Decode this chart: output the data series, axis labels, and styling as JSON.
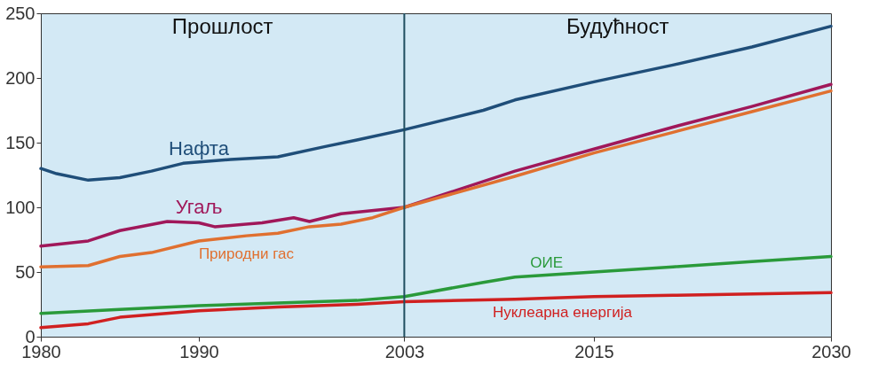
{
  "chart_data": {
    "type": "line",
    "xlim": [
      1980,
      2030
    ],
    "xticks": [
      1980,
      1990,
      2003,
      2015,
      2030
    ],
    "ylim": [
      0,
      250
    ],
    "yticks": [
      0,
      50,
      100,
      150,
      200,
      250
    ],
    "grid": false,
    "marker": "none",
    "line_style": "solid",
    "series": [
      {
        "name": "Нафта",
        "color": "#1f4e79",
        "x": [
          1980,
          1981,
          1983,
          1985,
          1987,
          1989,
          1992,
          1995,
          1998,
          2000,
          2003,
          2008,
          2010,
          2015,
          2020,
          2025,
          2030
        ],
        "values": [
          130,
          126,
          121,
          123,
          128,
          134,
          137,
          139,
          147,
          152,
          160,
          175,
          183,
          197,
          210,
          224,
          240
        ]
      },
      {
        "name": "Угаљ",
        "color": "#a0185a",
        "x": [
          1980,
          1983,
          1985,
          1988,
          1990,
          1991,
          1994,
          1996,
          1997,
          1999,
          2003,
          2010,
          2015,
          2020,
          2025,
          2030
        ],
        "values": [
          70,
          74,
          82,
          89,
          88,
          85,
          88,
          92,
          89,
          95,
          100,
          128,
          145,
          162,
          178,
          195
        ]
      },
      {
        "name": "Природни гас",
        "color": "#e07030",
        "x": [
          1980,
          1983,
          1985,
          1987,
          1990,
          1993,
          1995,
          1997,
          1999,
          2001,
          2003,
          2010,
          2015,
          2020,
          2025,
          2030
        ],
        "values": [
          54,
          55,
          62,
          65,
          74,
          78,
          80,
          85,
          87,
          92,
          100,
          124,
          142,
          158,
          174,
          190
        ]
      },
      {
        "name": "ОИЕ",
        "color": "#2a9a3a",
        "x": [
          1980,
          1985,
          1990,
          1995,
          2000,
          2003,
          2008,
          2010,
          2015,
          2020,
          2025,
          2030
        ],
        "values": [
          18,
          21,
          24,
          26,
          28,
          31,
          42,
          46,
          50,
          54,
          58,
          62
        ]
      },
      {
        "name": "Нуклеарна енергија",
        "color": "#d02020",
        "x": [
          1980,
          1983,
          1985,
          1990,
          1995,
          2000,
          2003,
          2010,
          2015,
          2020,
          2030
        ],
        "values": [
          7,
          10,
          15,
          20,
          23,
          25,
          27,
          29,
          31,
          32,
          34
        ]
      }
    ],
    "ref_lines": [
      {
        "axis": "x",
        "value": 2003,
        "color": "#1f4e5f"
      }
    ],
    "annotations": [
      "Прошлост",
      "Будућност"
    ]
  }
}
